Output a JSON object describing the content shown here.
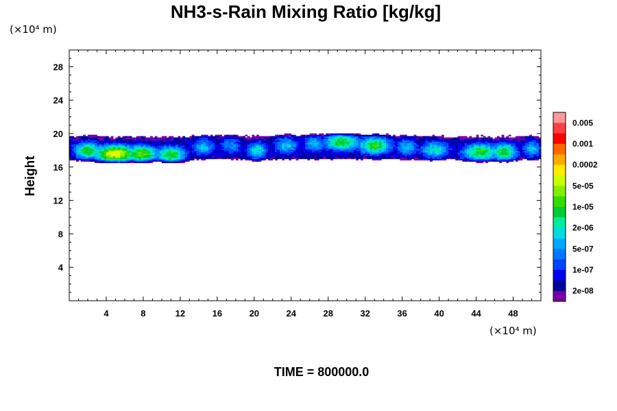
{
  "chart_data": {
    "type": "heatmap",
    "title": "NH3-s-Rain Mixing Ratio [kg/kg]",
    "xlabel": "",
    "ylabel": "Height",
    "x_unit_label": "(×10⁴ m)",
    "y_unit_label": "(×10⁴ m)",
    "xlim": [
      0,
      51
    ],
    "ylim": [
      0,
      30
    ],
    "x_ticks": [
      "4",
      "8",
      "12",
      "16",
      "20",
      "24",
      "28",
      "32",
      "36",
      "40",
      "44",
      "48"
    ],
    "y_ticks": [
      "4",
      "8",
      "12",
      "16",
      "20",
      "24",
      "28"
    ],
    "legend_labels": [
      "0.005",
      "0.001",
      "0.0002",
      "5e-05",
      "1e-05",
      "2e-06",
      "5e-07",
      "1e-07",
      "2e-08"
    ],
    "legend_colors": [
      "#ff9999",
      "#ff4040",
      "#ff0000",
      "#ff6600",
      "#ffaa00",
      "#ffee00",
      "#ccff00",
      "#88ee00",
      "#33dd00",
      "#00cc33",
      "#00ee99",
      "#00dddd",
      "#00aaff",
      "#0077ff",
      "#0044ff",
      "#0000ee",
      "#000099",
      "#7700aa"
    ],
    "cloud_layer": {
      "bottom_km_x1e4": 16.5,
      "top_km_x1e4": 20.0,
      "x_range": [
        0,
        51
      ]
    },
    "time_label": "TIME = 800000.0"
  }
}
